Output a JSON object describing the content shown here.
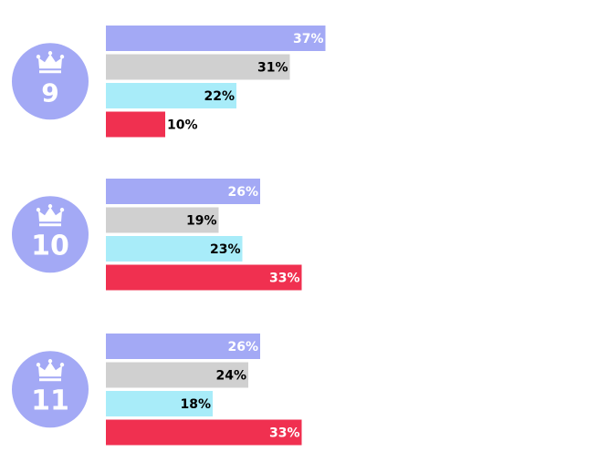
{
  "chart_data": {
    "type": "bar",
    "orientation": "horizontal",
    "grid": false,
    "legend": "none",
    "xlim": [
      0,
      40
    ],
    "series_colors": [
      "#a3a9f5",
      "#d0d0d0",
      "#a8ecf9",
      "#f03050"
    ],
    "label_colors": [
      "#ffffff",
      "#000000",
      "#000000",
      "#ffffff"
    ],
    "group_icon": "crown-icon",
    "group_badge_color": "#a3a9f5",
    "groups": [
      {
        "label": "9",
        "values": [
          37,
          31,
          22,
          10
        ],
        "labels": [
          "37%",
          "31%",
          "22%",
          "10%"
        ]
      },
      {
        "label": "10",
        "values": [
          26,
          19,
          23,
          33
        ],
        "labels": [
          "26%",
          "19%",
          "23%",
          "33%"
        ]
      },
      {
        "label": "11",
        "values": [
          26,
          24,
          18,
          33
        ],
        "labels": [
          "26%",
          "24%",
          "18%",
          "33%"
        ]
      }
    ]
  }
}
